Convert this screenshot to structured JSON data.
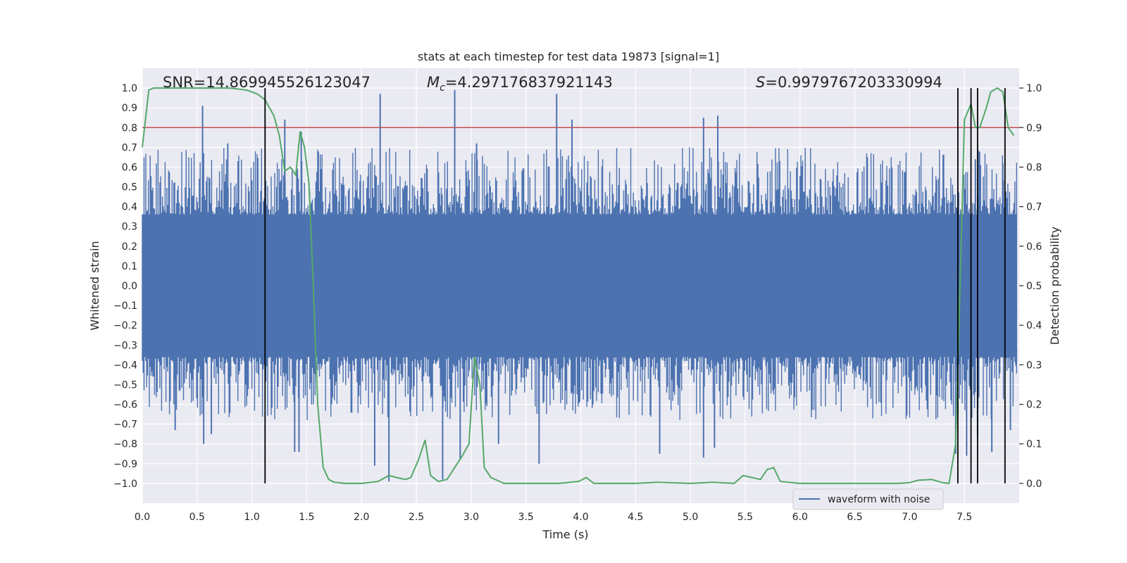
{
  "chart_data": {
    "type": "line",
    "title": "stats at each timestep for test data 19873 [signal=1]",
    "xlabel": "Time (s)",
    "ylabel_left": "Whitened strain",
    "ylabel_right": "Detection probability",
    "xlim": [
      0.0,
      8.0
    ],
    "ylim_left": [
      -1.1,
      1.1
    ],
    "ylim_right": [
      -0.05,
      1.05
    ],
    "x_ticks": [
      "0.0",
      "0.5",
      "1.0",
      "1.5",
      "2.0",
      "2.5",
      "3.0",
      "3.5",
      "4.0",
      "4.5",
      "5.0",
      "5.5",
      "6.0",
      "6.5",
      "7.0",
      "7.5"
    ],
    "y_ticks_left": [
      "−1.0",
      "−0.9",
      "−0.8",
      "−0.7",
      "−0.6",
      "−0.5",
      "−0.4",
      "−0.3",
      "−0.2",
      "−0.1",
      "0.0",
      "0.1",
      "0.2",
      "0.3",
      "0.4",
      "0.5",
      "0.6",
      "0.7",
      "0.8",
      "0.9",
      "1.0"
    ],
    "y_ticks_right": [
      "0.0",
      "0.1",
      "0.2",
      "0.3",
      "0.4",
      "0.5",
      "0.6",
      "0.7",
      "0.8",
      "0.9",
      "1.0"
    ],
    "grid": true,
    "stats": {
      "snr_label": "SNR=14.869945526123047",
      "mc_symbol": "M",
      "mc_subscript": "c",
      "mc_value": "=4.297176837921143",
      "s_symbol": "S",
      "s_value": "=0.9979767203330994"
    },
    "threshold": {
      "value": 0.9,
      "axis": "right",
      "color": "#c44e52"
    },
    "event_lines": [
      1.12,
      7.44,
      7.56,
      7.62,
      7.87
    ],
    "waveform": {
      "name": "waveform with noise",
      "color": "#4c72b0",
      "envelope": 0.36,
      "spikes_up": [
        [
          0.55,
          0.91
        ],
        [
          0.78,
          0.72
        ],
        [
          1.3,
          0.84
        ],
        [
          1.45,
          0.78
        ],
        [
          2.17,
          0.97
        ],
        [
          2.85,
          0.99
        ],
        [
          3.05,
          0.72
        ],
        [
          3.78,
          0.97
        ],
        [
          3.92,
          0.84
        ],
        [
          5.12,
          0.85
        ],
        [
          5.25,
          0.86
        ],
        [
          7.6,
          0.64
        ],
        [
          7.85,
          0.62
        ]
      ],
      "spikes_down": [
        [
          0.3,
          -0.73
        ],
        [
          0.56,
          -0.8
        ],
        [
          0.63,
          -0.75
        ],
        [
          1.39,
          -0.84
        ],
        [
          1.43,
          -0.84
        ],
        [
          2.12,
          -0.91
        ],
        [
          2.25,
          -0.99
        ],
        [
          2.74,
          -0.98
        ],
        [
          2.9,
          -0.88
        ],
        [
          3.25,
          -0.8
        ],
        [
          3.62,
          -0.9
        ],
        [
          4.72,
          -0.85
        ],
        [
          5.12,
          -0.87
        ],
        [
          5.22,
          -0.82
        ],
        [
          7.42,
          -0.85
        ],
        [
          7.52,
          -0.86
        ],
        [
          7.62,
          -0.76
        ],
        [
          7.75,
          -0.84
        ],
        [
          7.92,
          -0.73
        ]
      ]
    },
    "probability": {
      "name": "detection probability",
      "color": "#55a868",
      "x": [
        0.0,
        0.06,
        0.1,
        0.2,
        0.4,
        0.6,
        0.8,
        0.95,
        1.05,
        1.12,
        1.2,
        1.25,
        1.3,
        1.35,
        1.4,
        1.44,
        1.48,
        1.52,
        1.56,
        1.6,
        1.65,
        1.7,
        1.75,
        1.85,
        2.0,
        2.15,
        2.25,
        2.32,
        2.4,
        2.45,
        2.52,
        2.58,
        2.63,
        2.7,
        2.78,
        2.85,
        2.92,
        2.98,
        3.03,
        3.08,
        3.12,
        3.18,
        3.3,
        3.5,
        3.8,
        3.98,
        4.05,
        4.12,
        4.3,
        4.5,
        4.7,
        5.0,
        5.2,
        5.4,
        5.48,
        5.56,
        5.64,
        5.7,
        5.76,
        5.82,
        6.0,
        6.3,
        6.6,
        6.9,
        7.0,
        7.08,
        7.2,
        7.3,
        7.36,
        7.42,
        7.46,
        7.5,
        7.56,
        7.6,
        7.64,
        7.7,
        7.74,
        7.8,
        7.85,
        7.9,
        7.95
      ],
      "y": [
        0.85,
        0.995,
        1.0,
        1.0,
        1.0,
        1.0,
        1.0,
        0.995,
        0.985,
        0.97,
        0.93,
        0.88,
        0.79,
        0.8,
        0.78,
        0.89,
        0.85,
        0.76,
        0.5,
        0.2,
        0.04,
        0.01,
        0.003,
        0.0,
        0.0,
        0.005,
        0.02,
        0.015,
        0.01,
        0.015,
        0.06,
        0.11,
        0.02,
        0.005,
        0.01,
        0.04,
        0.07,
        0.1,
        0.32,
        0.25,
        0.04,
        0.015,
        0.0,
        0.0,
        0.0,
        0.005,
        0.015,
        0.0,
        0.0,
        0.0,
        0.003,
        0.0,
        0.003,
        0.0,
        0.02,
        0.015,
        0.01,
        0.035,
        0.04,
        0.005,
        0.0,
        0.0,
        0.0,
        0.0,
        0.002,
        0.008,
        0.01,
        0.002,
        0.0,
        0.1,
        0.5,
        0.92,
        0.96,
        0.9,
        0.9,
        0.95,
        0.99,
        1.0,
        0.99,
        0.9,
        0.88
      ]
    },
    "legend": {
      "placement": "bottom-right",
      "label": "waveform with noise"
    }
  }
}
